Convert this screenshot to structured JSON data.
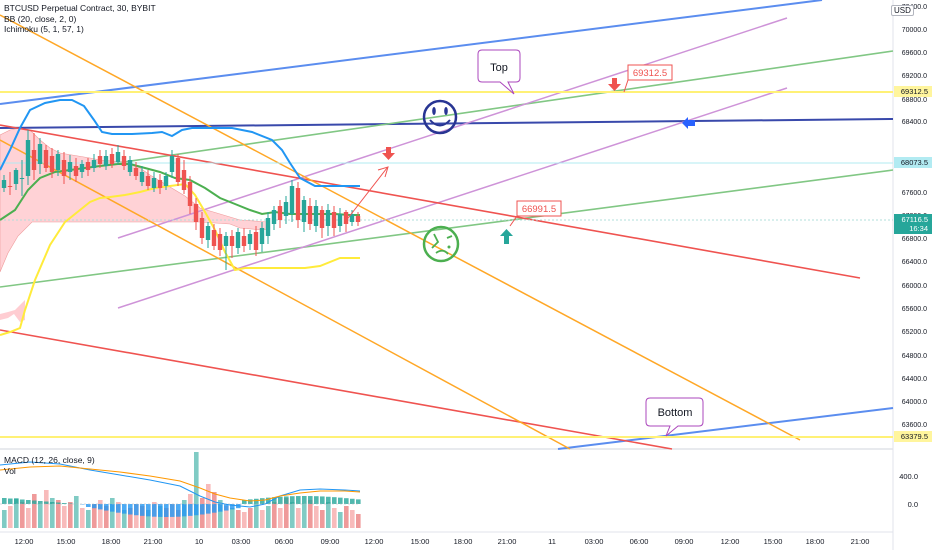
{
  "legend": {
    "symbol": "BTCUSD Perpetual Contract, 30, BYBIT",
    "bb": "BB (20, close, 2, 0)",
    "ichimoku": "Ichimoku (5, 1, 57, 1)",
    "macd": "MACD (12, 26, close, 9)",
    "vol": "Vol"
  },
  "currency": "USD",
  "price_axis": {
    "ticks": [
      "70400.0",
      "70000.0",
      "69600.0",
      "69200.0",
      "68800.0",
      "68400.0",
      "67600.0",
      "67200.0",
      "66800.0",
      "66400.0",
      "66000.0",
      "65600.0",
      "65200.0",
      "64800.0",
      "64400.0",
      "64000.0",
      "63600.0"
    ],
    "labels": [
      {
        "text": "69312.5",
        "color": "#fff59d",
        "text_color": "#131722"
      },
      {
        "text": "68073.5",
        "color": "#b2ebf2",
        "text_color": "#131722"
      },
      {
        "text": "67116.5",
        "color": "#26a69a",
        "text_color": "#ffffff",
        "sub": "16:34"
      },
      {
        "text": "63379.5",
        "color": "#fff59d",
        "text_color": "#131722"
      }
    ]
  },
  "macd_axis": {
    "ticks": [
      "400.0",
      "0.0"
    ]
  },
  "time_axis": [
    "12:00",
    "15:00",
    "18:00",
    "21:00",
    "10",
    "03:00",
    "06:00",
    "09:00",
    "12:00",
    "15:00",
    "18:00",
    "21:00",
    "11",
    "03:00",
    "06:00",
    "09:00",
    "12:00",
    "15:00",
    "18:00",
    "21:00"
  ],
  "annotations": {
    "top_callout": "Top",
    "bottom_callout": "Bottom",
    "price_tag_high": "69312.5",
    "price_tag_low": "66991.5"
  },
  "colors": {
    "up": "#26a69a",
    "down": "#ef5350",
    "bb_line": "#2196f3",
    "yellow_line": "#ffeb3b",
    "green_line": "#4caf50",
    "trend_blue": "#5b8def",
    "trend_green": "#81c784",
    "trend_violet": "#ce93d8",
    "trend_orange": "#ffa726",
    "trend_red": "#ef5350",
    "navy": "#283593"
  },
  "icons": [
    "smiley-face-icon",
    "sick-face-icon",
    "arrow-down-icon",
    "arrow-up-icon",
    "arrow-left-icon"
  ]
}
